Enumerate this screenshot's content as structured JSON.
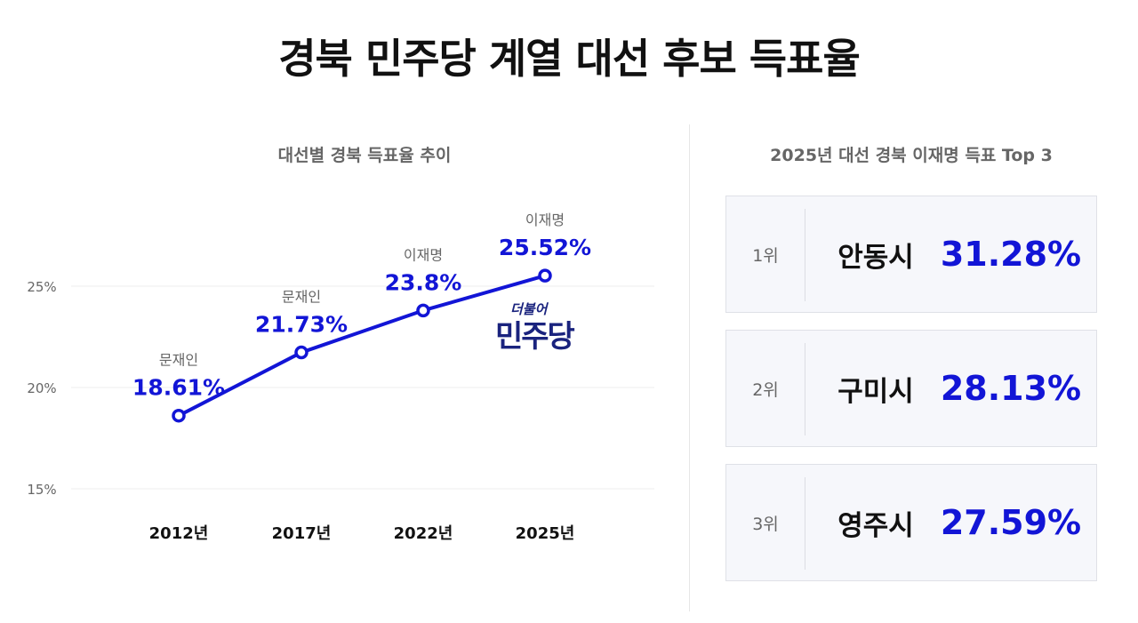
{
  "title": "경북 민주당 계열 대선 후보 득표율",
  "line_chart_title": "대선별 경북 득표율 추이",
  "ranking_title": "2025년 대선 경북 이재명 득표 Top 3",
  "logo": {
    "small": "더불어",
    "main": "민주당",
    "color": "#1a237e"
  },
  "colors": {
    "accent": "#1215d6",
    "grid": "#ececec",
    "axis_text": "#666666"
  },
  "chart_data": [
    {
      "type": "line",
      "title": "대선별 경북 득표율 추이",
      "categories": [
        "2012년",
        "2017년",
        "2022년",
        "2025년"
      ],
      "series": [
        {
          "values": [
            18.61,
            21.73,
            23.8,
            25.52
          ],
          "value_labels": [
            "18.61%",
            "21.73%",
            "23.8%",
            "25.52%"
          ],
          "candidates": [
            "문재인",
            "문재인",
            "이재명",
            "이재명"
          ]
        }
      ],
      "y_ticks": [
        15,
        20,
        25
      ],
      "y_tick_labels": [
        "15%",
        "20%",
        "25%"
      ],
      "ylim": [
        15,
        27
      ],
      "grid": true
    },
    {
      "type": "table",
      "title": "2025년 대선 경북 이재명 득표 Top 3",
      "rows": [
        {
          "rank": "1위",
          "city": "안동시",
          "value": 31.28,
          "value_label": "31.28%"
        },
        {
          "rank": "2위",
          "city": "구미시",
          "value": 28.13,
          "value_label": "28.13%"
        },
        {
          "rank": "3위",
          "city": "영주시",
          "value": 27.59,
          "value_label": "27.59%"
        }
      ]
    }
  ]
}
